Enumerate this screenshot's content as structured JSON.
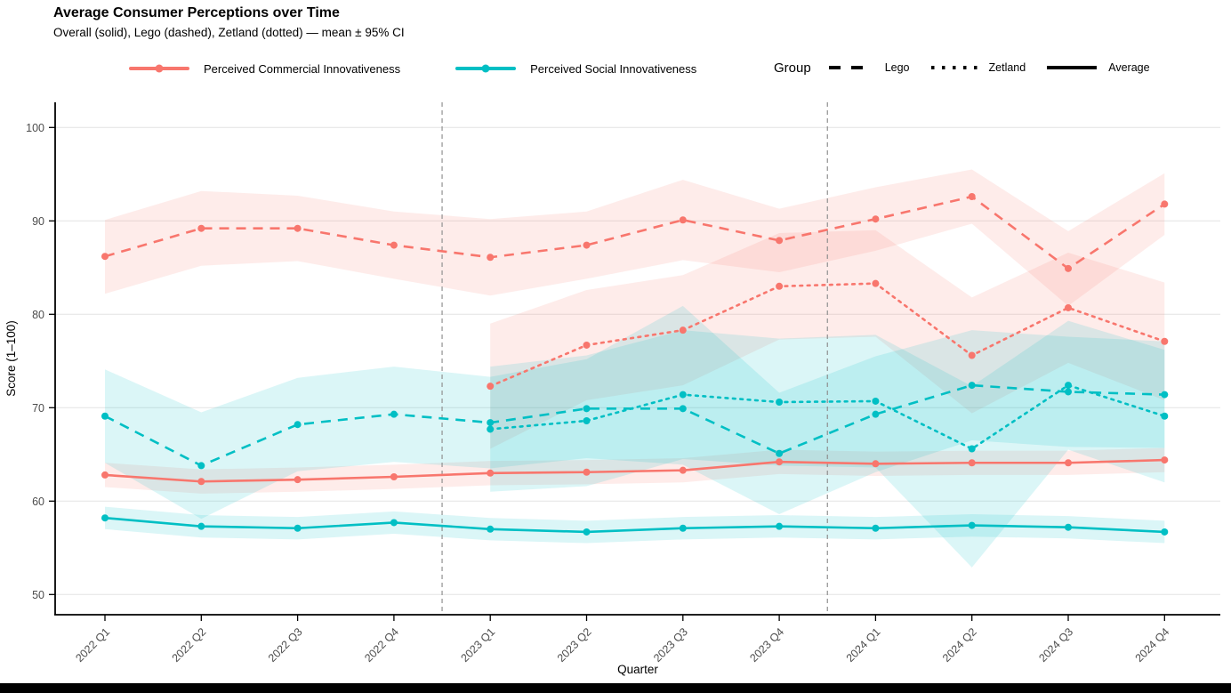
{
  "header": {
    "title": "Average Consumer Perceptions over Time",
    "subtitle": "Overall (solid), Lego (dashed), Zetland (dotted) — mean ± 95% CI"
  },
  "legend": {
    "measures": [
      {
        "label": "Perceived Commercial Innovativeness",
        "color": "#F8766D"
      },
      {
        "label": "Perceived Social Innovativeness",
        "color": "#00BFC4"
      }
    ],
    "group": {
      "title": "Group",
      "items": [
        {
          "label": "Lego",
          "dash": "dashed"
        },
        {
          "label": "Zetland",
          "dash": "dotted"
        },
        {
          "label": "Average",
          "dash": "solid"
        }
      ]
    }
  },
  "chart_data": {
    "type": "line",
    "title": "Average Consumer Perceptions over Time",
    "subtitle": "Overall (solid), Lego (dashed), Zetland (dotted) — mean ± 95% CI",
    "xlabel": "Quarter",
    "ylabel": "Score (1–100)",
    "ylim": [
      48,
      102
    ],
    "yticks": [
      50,
      60,
      70,
      80,
      90,
      100
    ],
    "grid": "horizontal-only",
    "legend_position": "top",
    "vline_positions": [
      3.5,
      7.5
    ],
    "categories": [
      "2022 Q1",
      "2022 Q2",
      "2022 Q3",
      "2022 Q4",
      "2023 Q1",
      "2023 Q2",
      "2023 Q3",
      "2023 Q4",
      "2024 Q1",
      "2024 Q2",
      "2024 Q3",
      "2024 Q4"
    ],
    "series": [
      {
        "name": "Perceived Commercial Innovativeness — Lego",
        "measure": "Perceived Commercial Innovativeness",
        "group": "Lego",
        "color": "#F8766D",
        "dash": "dashed",
        "values": [
          86.2,
          89.2,
          89.2,
          87.4,
          86.1,
          87.4,
          90.1,
          87.9,
          90.2,
          92.6,
          84.9,
          91.8
        ],
        "ci_upper": [
          90.1,
          93.2,
          92.7,
          91.0,
          90.2,
          91.0,
          94.4,
          91.3,
          93.6,
          95.5,
          88.9,
          95.1
        ],
        "ci_lower": [
          82.2,
          85.2,
          85.7,
          83.8,
          82.0,
          83.8,
          85.8,
          84.5,
          86.8,
          89.7,
          80.9,
          88.5
        ]
      },
      {
        "name": "Perceived Commercial Innovativeness — Zetland",
        "measure": "Perceived Commercial Innovativeness",
        "group": "Zetland",
        "color": "#F8766D",
        "dash": "dotted",
        "values": [
          null,
          null,
          null,
          null,
          72.3,
          76.7,
          78.3,
          83.0,
          83.3,
          75.6,
          80.7,
          77.1
        ],
        "ci_upper": [
          null,
          null,
          null,
          null,
          79.0,
          82.6,
          84.2,
          88.7,
          89.0,
          81.8,
          86.6,
          83.4
        ],
        "ci_lower": [
          null,
          null,
          null,
          null,
          65.6,
          70.8,
          72.4,
          77.3,
          77.6,
          69.4,
          74.8,
          70.8
        ]
      },
      {
        "name": "Perceived Commercial Innovativeness — Average",
        "measure": "Perceived Commercial Innovativeness",
        "group": "Average",
        "color": "#F8766D",
        "dash": "solid",
        "values": [
          62.8,
          62.1,
          62.3,
          62.6,
          63.0,
          63.1,
          63.3,
          64.2,
          64.0,
          64.1,
          64.1,
          64.4
        ],
        "ci_upper": [
          64.1,
          63.4,
          63.6,
          63.9,
          64.3,
          64.4,
          64.6,
          65.5,
          65.3,
          65.4,
          65.4,
          65.7
        ],
        "ci_lower": [
          61.5,
          60.8,
          61.0,
          61.3,
          61.7,
          61.8,
          62.0,
          62.9,
          62.7,
          62.8,
          62.8,
          63.1
        ]
      },
      {
        "name": "Perceived Social Innovativeness — Lego",
        "measure": "Perceived Social Innovativeness",
        "group": "Lego",
        "color": "#00BFC4",
        "dash": "dashed",
        "values": [
          69.1,
          63.8,
          68.2,
          69.3,
          68.4,
          69.9,
          69.9,
          65.1,
          69.3,
          72.4,
          71.7,
          71.4
        ],
        "ci_upper": [
          74.1,
          69.5,
          73.2,
          74.4,
          73.3,
          75.2,
          80.9,
          71.6,
          75.5,
          78.3,
          77.6,
          77.1
        ],
        "ci_lower": [
          64.1,
          58.1,
          63.2,
          64.2,
          63.5,
          64.6,
          63.9,
          58.6,
          63.1,
          66.5,
          65.8,
          65.7
        ]
      },
      {
        "name": "Perceived Social Innovativeness — Zetland",
        "measure": "Perceived Social Innovativeness",
        "group": "Zetland",
        "color": "#00BFC4",
        "dash": "dotted",
        "values": [
          null,
          null,
          null,
          null,
          67.7,
          68.6,
          71.4,
          70.6,
          70.7,
          65.6,
          72.4,
          69.1
        ],
        "ci_upper": [
          null,
          null,
          null,
          null,
          74.4,
          75.6,
          78.3,
          77.4,
          77.8,
          72.3,
          79.3,
          76.2
        ],
        "ci_lower": [
          null,
          null,
          null,
          null,
          61.0,
          61.6,
          64.5,
          63.8,
          63.6,
          52.9,
          65.5,
          62.0
        ]
      },
      {
        "name": "Perceived Social Innovativeness — Average",
        "measure": "Perceived Social Innovativeness",
        "group": "Average",
        "color": "#00BFC4",
        "dash": "solid",
        "values": [
          58.2,
          57.3,
          57.1,
          57.7,
          57.0,
          56.7,
          57.1,
          57.3,
          57.1,
          57.4,
          57.2,
          56.7
        ],
        "ci_upper": [
          59.4,
          58.5,
          58.3,
          58.9,
          58.2,
          57.9,
          58.3,
          58.5,
          58.3,
          58.6,
          58.4,
          57.9
        ],
        "ci_lower": [
          57.0,
          56.1,
          55.9,
          56.5,
          55.8,
          55.5,
          55.9,
          56.1,
          55.9,
          56.2,
          56.0,
          55.5
        ]
      }
    ],
    "colors": {
      "commercial": "#F8766D",
      "social": "#00BFC4",
      "gridline": "#E4E4E4",
      "axis": "#000000",
      "vline": "#909090",
      "tick_label": "#4D4D4D"
    }
  }
}
